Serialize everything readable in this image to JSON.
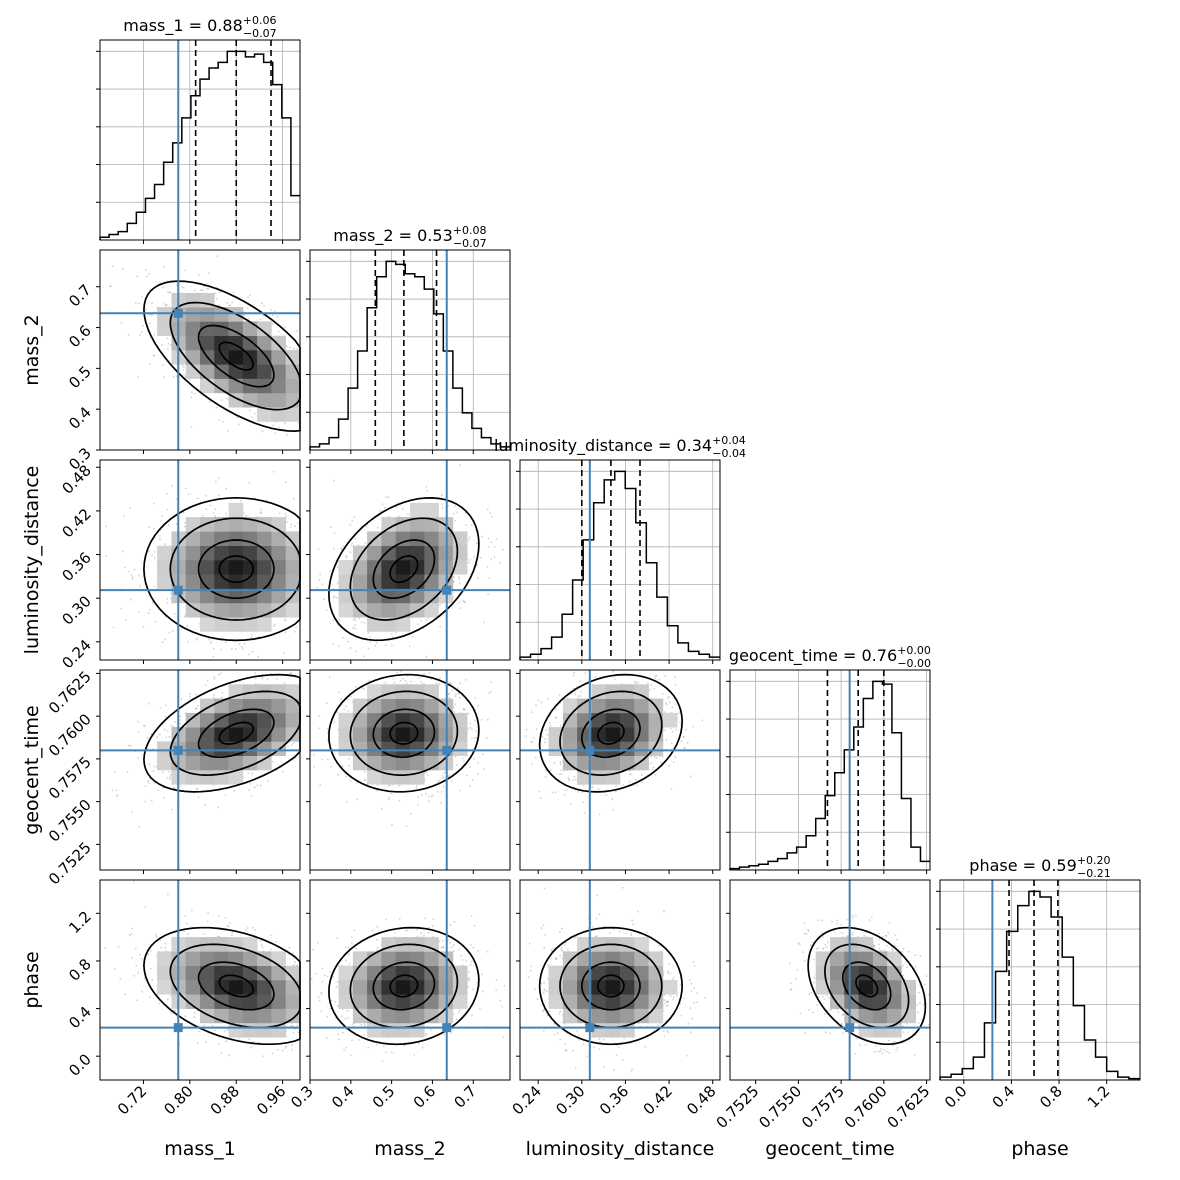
{
  "chart_data": {
    "type": "corner",
    "parameters": [
      "mass_1",
      "mass_2",
      "luminosity_distance",
      "geocent_time",
      "phase"
    ],
    "axis_labels": [
      "mass_1",
      "mass_2",
      "luminosity_distance",
      "geocent_time",
      "phase"
    ],
    "titles": [
      {
        "param": "mass_1",
        "median": "0.88",
        "plus": "+0.06",
        "minus": "−0.07"
      },
      {
        "param": "mass_2",
        "median": "0.53",
        "plus": "+0.08",
        "minus": "−0.07"
      },
      {
        "param": "luminosity_distance",
        "median": "0.34",
        "plus": "+0.04",
        "minus": "−0.04"
      },
      {
        "param": "geocent_time",
        "median": "0.76",
        "plus": "+0.00",
        "minus": "−0.00"
      },
      {
        "param": "phase",
        "median": "0.59",
        "plus": "+0.20",
        "minus": "−0.21"
      }
    ],
    "ranges": [
      [
        0.645,
        0.99
      ],
      [
        0.3,
        0.79
      ],
      [
        0.215,
        0.49
      ],
      [
        0.751,
        0.7627
      ],
      [
        -0.2,
        1.48
      ]
    ],
    "ticks": [
      {
        "values": [
          0.72,
          0.8,
          0.88,
          0.96
        ],
        "labels": [
          "0.72",
          "0.80",
          "0.88",
          "0.96"
        ]
      },
      {
        "values": [
          0.3,
          0.4,
          0.5,
          0.6,
          0.7
        ],
        "labels": [
          "0.3",
          "0.4",
          "0.5",
          "0.6",
          "0.7"
        ]
      },
      {
        "values": [
          0.24,
          0.3,
          0.36,
          0.42,
          0.48
        ],
        "labels": [
          "0.24",
          "0.30",
          "0.36",
          "0.42",
          "0.48"
        ]
      },
      {
        "values": [
          0.7525,
          0.755,
          0.7575,
          0.76,
          0.7625
        ],
        "labels": [
          "0.7525",
          "0.7550",
          "0.7575",
          "0.7600",
          "0.7625"
        ]
      },
      {
        "values": [
          0.0,
          0.4,
          0.8,
          1.2
        ],
        "labels": [
          "0.0",
          "0.4",
          "0.8",
          "1.2"
        ]
      }
    ],
    "truths": [
      0.78,
      0.635,
      0.311,
      0.758,
      0.24
    ],
    "quantiles": [
      [
        0.81,
        0.88,
        0.94
      ],
      [
        0.46,
        0.53,
        0.61
      ],
      [
        0.3,
        0.34,
        0.38
      ],
      [
        0.7567,
        0.7585,
        0.76
      ],
      [
        0.38,
        0.59,
        0.79
      ]
    ],
    "histograms": [
      [
        1,
        2,
        3,
        6,
        10,
        15,
        20,
        28,
        35,
        44,
        52,
        58,
        62,
        64,
        68,
        68,
        66,
        67,
        64,
        56,
        44,
        16
      ],
      [
        1,
        2,
        4,
        10,
        20,
        32,
        46,
        56,
        61,
        60,
        57,
        56,
        52,
        44,
        32,
        20,
        12,
        7,
        4,
        2,
        1
      ],
      [
        1,
        2,
        4,
        8,
        16,
        28,
        42,
        55,
        63,
        66,
        60,
        48,
        34,
        22,
        12,
        6,
        3,
        2,
        1
      ],
      [
        0.5,
        1,
        1.5,
        2,
        3,
        4,
        6,
        8,
        12,
        18,
        26,
        34,
        42,
        50,
        60,
        66,
        65,
        48,
        25,
        8,
        3
      ],
      [
        1,
        2,
        4,
        8,
        20,
        38,
        52,
        61,
        66,
        64,
        57,
        43,
        26,
        14,
        8,
        3,
        1,
        0.5
      ]
    ],
    "grid": true
  }
}
